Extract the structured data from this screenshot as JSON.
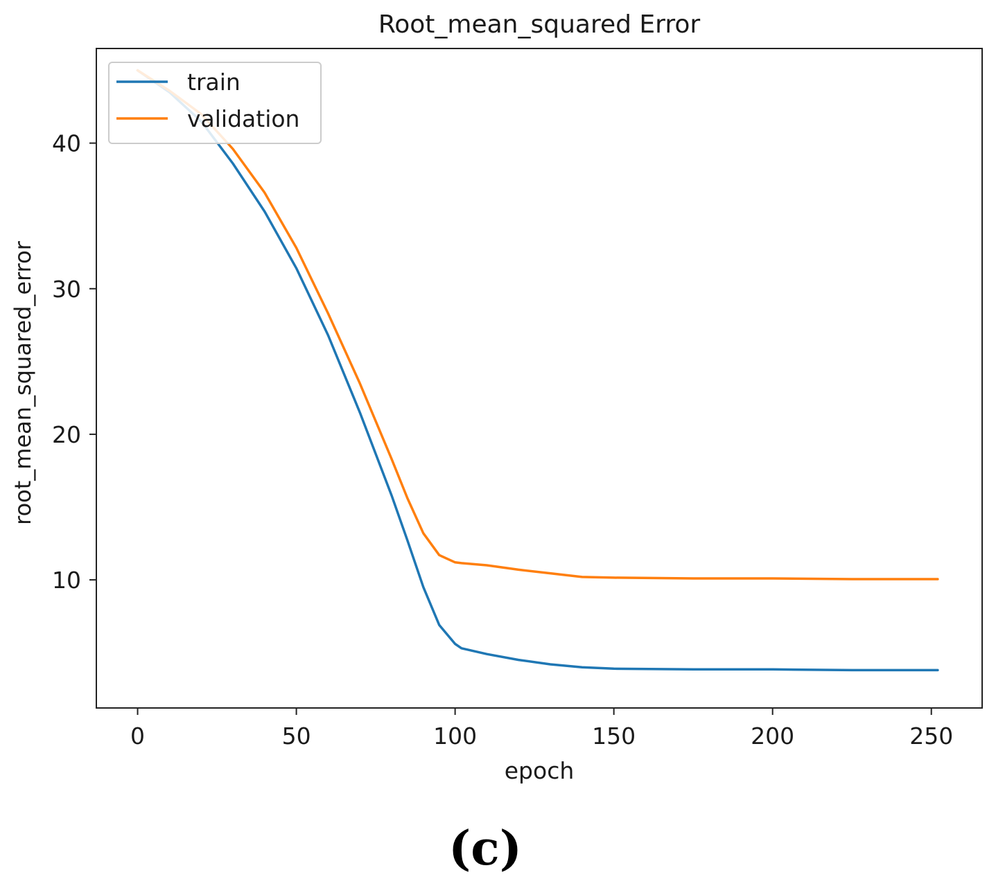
{
  "chart_data": {
    "type": "line",
    "title": "Root_mean_squared Error",
    "xlabel": "epoch",
    "ylabel": "root_mean_squared_error",
    "xlim": [
      -13,
      266
    ],
    "ylim": [
      1.2,
      46.5
    ],
    "xticks": [
      0,
      50,
      100,
      150,
      200,
      250
    ],
    "yticks": [
      10,
      20,
      30,
      40
    ],
    "grid": false,
    "legend_placement": "top-left",
    "series": [
      {
        "name": "train",
        "color": "#1f77b4",
        "x": [
          0,
          10,
          20,
          30,
          40,
          50,
          60,
          70,
          80,
          85,
          90,
          95,
          100,
          102,
          110,
          120,
          130,
          140,
          150,
          175,
          200,
          225,
          252
        ],
        "y": [
          45.0,
          43.5,
          41.5,
          38.6,
          35.3,
          31.4,
          26.8,
          21.5,
          15.8,
          12.7,
          9.5,
          6.9,
          5.6,
          5.3,
          4.9,
          4.5,
          4.2,
          4.0,
          3.9,
          3.85,
          3.85,
          3.8,
          3.8
        ]
      },
      {
        "name": "validation",
        "color": "#ff7f0e",
        "x": [
          0,
          10,
          20,
          30,
          40,
          50,
          60,
          70,
          80,
          85,
          90,
          95,
          100,
          102,
          110,
          120,
          130,
          140,
          150,
          175,
          200,
          225,
          252
        ],
        "y": [
          45.0,
          43.6,
          42.0,
          39.6,
          36.6,
          32.8,
          28.3,
          23.5,
          18.3,
          15.6,
          13.2,
          11.7,
          11.2,
          11.15,
          11.0,
          10.7,
          10.45,
          10.2,
          10.15,
          10.1,
          10.1,
          10.05,
          10.05
        ]
      }
    ],
    "panel_label": "(c)"
  }
}
